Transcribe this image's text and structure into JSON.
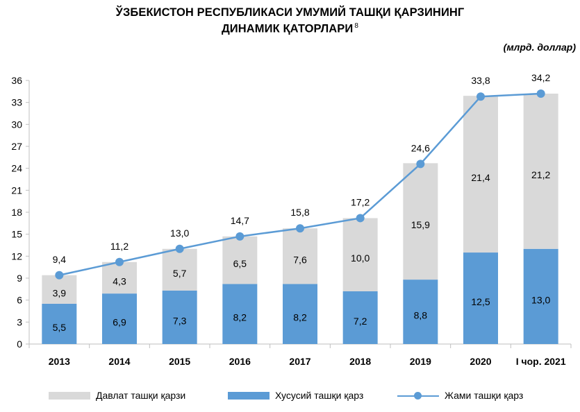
{
  "chart_data": {
    "type": "bar",
    "stacked": true,
    "title_line1": "ЎЗБЕКИСТОН РЕСПУБЛИКАСИ УМУМИЙ ТАШҚИ ҚАРЗИНИНГ",
    "title_line2": "ДИНАМИК ҚАТОРЛАРИ",
    "title_footnote": "8",
    "unit": "(млрд. доллар)",
    "categories": [
      "2013",
      "2014",
      "2015",
      "2016",
      "2017",
      "2018",
      "2019",
      "2020",
      "I чор. 2021"
    ],
    "series": [
      {
        "name": "Хусусий ташқи қарз",
        "kind": "bar",
        "color": "#5b9bd5",
        "values": [
          5.5,
          6.9,
          7.3,
          8.2,
          8.2,
          7.2,
          8.8,
          12.5,
          13.0
        ],
        "labels": [
          "5,5",
          "6,9",
          "7,3",
          "8,2",
          "8,2",
          "7,2",
          "8,8",
          "12,5",
          "13,0"
        ]
      },
      {
        "name": "Давлат ташқи қарзи",
        "kind": "bar",
        "color": "#d9d9d9",
        "values": [
          3.9,
          4.3,
          5.7,
          6.5,
          7.6,
          10.0,
          15.9,
          21.4,
          21.2
        ],
        "labels": [
          "3,9",
          "4,3",
          "5,7",
          "6,5",
          "7,6",
          "10,0",
          "15,9",
          "21,4",
          "21,2"
        ]
      },
      {
        "name": "Жами ташқи қарз",
        "kind": "line",
        "color": "#5b9bd5",
        "values": [
          9.4,
          11.2,
          13.0,
          14.7,
          15.8,
          17.2,
          24.6,
          33.8,
          34.2
        ],
        "labels": [
          "9,4",
          "11,2",
          "13,0",
          "14,7",
          "15,8",
          "17,2",
          "24,6",
          "33,8",
          "34,2"
        ]
      }
    ],
    "yticks": [
      "0",
      "3",
      "6",
      "9",
      "12",
      "15",
      "18",
      "21",
      "24",
      "27",
      "30",
      "33",
      "36"
    ],
    "ylim": [
      0,
      36
    ],
    "grid": false,
    "legend_position": "bottom"
  }
}
